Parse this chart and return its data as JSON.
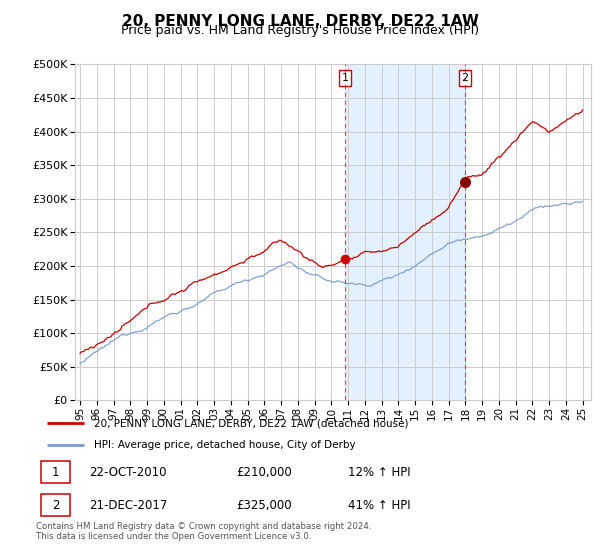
{
  "title": "20, PENNY LONG LANE, DERBY, DE22 1AW",
  "subtitle": "Price paid vs. HM Land Registry's House Price Index (HPI)",
  "title_fontsize": 11,
  "subtitle_fontsize": 9,
  "background_color": "#ffffff",
  "shaded_region_color": "#ddeeff",
  "grid_color": "#cccccc",
  "red_line_color": "#cc0000",
  "blue_line_color": "#7799cc",
  "x_shade_start": 2010.81,
  "x_shade_end": 2017.97,
  "sale1_price": 210000,
  "sale2_price": 325000,
  "legend_label_red": "20, PENNY LONG LANE, DERBY, DE22 1AW (detached house)",
  "legend_label_blue": "HPI: Average price, detached house, City of Derby",
  "footer": "Contains HM Land Registry data © Crown copyright and database right 2024.\nThis data is licensed under the Open Government Licence v3.0.",
  "ylim": [
    0,
    500000
  ],
  "yticks": [
    0,
    50000,
    100000,
    150000,
    200000,
    250000,
    300000,
    350000,
    400000,
    450000,
    500000
  ],
  "xlim_start": 1994.7,
  "xlim_end": 2025.5
}
